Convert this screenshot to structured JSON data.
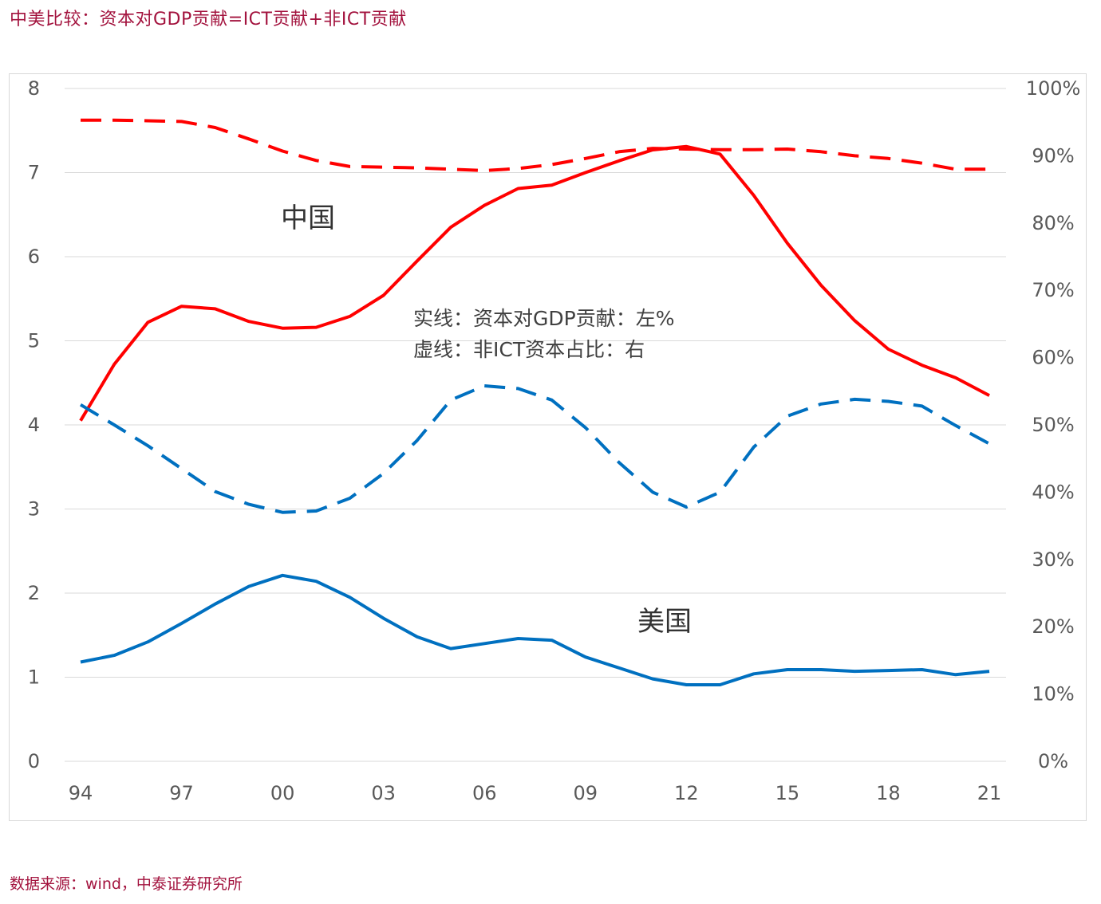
{
  "page": {
    "title": "中美比较：资本对GDP贡献=ICT贡献+非ICT贡献",
    "source": "数据来源：wind，中泰证券研究所"
  },
  "colors": {
    "china": "#ff0000",
    "usa": "#0070c0",
    "grid": "#d9d9d9",
    "tick_text": "#595959",
    "title_text": "#a3133e"
  },
  "chart_data": {
    "type": "line",
    "x": [
      "94",
      "95",
      "96",
      "97",
      "98",
      "99",
      "00",
      "01",
      "02",
      "03",
      "04",
      "05",
      "06",
      "07",
      "08",
      "09",
      "10",
      "11",
      "12",
      "13",
      "14",
      "15",
      "16",
      "17",
      "18",
      "19",
      "20",
      "21"
    ],
    "x_tick_labels": [
      "94",
      "97",
      "00",
      "03",
      "06",
      "09",
      "12",
      "15",
      "18",
      "21"
    ],
    "y_left": {
      "ticks": [
        "0",
        "1",
        "2",
        "3",
        "4",
        "5",
        "6",
        "7",
        "8"
      ],
      "ylim": [
        0,
        8
      ],
      "label": ""
    },
    "y_right": {
      "ticks": [
        "0%",
        "10%",
        "20%",
        "30%",
        "40%",
        "50%",
        "60%",
        "70%",
        "80%",
        "90%",
        "100%"
      ],
      "ylim": [
        0,
        100
      ],
      "label": ""
    },
    "series": [
      {
        "name": "中国 资本对GDP贡献",
        "axis": "left",
        "style": "solid",
        "color": "#ff0000",
        "values": [
          4.05,
          4.72,
          5.22,
          5.41,
          5.38,
          5.23,
          5.15,
          5.16,
          5.29,
          5.54,
          5.95,
          6.35,
          6.61,
          6.81,
          6.85,
          7.0,
          7.14,
          7.27,
          7.31,
          7.22,
          6.73,
          6.16,
          5.66,
          5.24,
          4.9,
          4.71,
          4.56,
          4.35
        ]
      },
      {
        "name": "中国 非ICT资本占比",
        "axis": "right",
        "style": "dashed",
        "color": "#ff0000",
        "values": [
          95.3,
          95.3,
          95.2,
          95.1,
          94.2,
          92.5,
          90.7,
          89.3,
          88.4,
          88.3,
          88.2,
          88.0,
          87.8,
          88.1,
          88.7,
          89.6,
          90.6,
          91.1,
          91.0,
          90.9,
          90.9,
          91.0,
          90.6,
          90.0,
          89.6,
          88.9,
          88.0,
          88.0
        ]
      },
      {
        "name": "美国 资本对GDP贡献",
        "axis": "left",
        "style": "solid",
        "color": "#0070c0",
        "values": [
          1.18,
          1.26,
          1.42,
          1.64,
          1.87,
          2.08,
          2.21,
          2.14,
          1.95,
          1.7,
          1.48,
          1.34,
          1.4,
          1.46,
          1.44,
          1.24,
          1.11,
          0.98,
          0.91,
          0.91,
          1.04,
          1.09,
          1.09,
          1.07,
          1.08,
          1.09,
          1.03,
          1.07
        ]
      },
      {
        "name": "美国 非ICT资本占比",
        "axis": "right",
        "style": "dashed",
        "color": "#0070c0",
        "values": [
          53.0,
          50.0,
          46.9,
          43.5,
          40.1,
          38.2,
          37.0,
          37.2,
          39.1,
          42.8,
          47.7,
          53.7,
          55.8,
          55.4,
          53.7,
          49.6,
          44.4,
          40.0,
          37.8,
          40.0,
          46.7,
          51.3,
          53.1,
          53.8,
          53.5,
          52.8,
          49.9,
          47.2
        ]
      }
    ],
    "annotations": [
      {
        "text": "中国",
        "near_series": "中国"
      },
      {
        "text": "美国",
        "near_series": "美国"
      }
    ],
    "note_lines": [
      "实线：资本对GDP贡献：左%",
      "虚线：非ICT资本占比：右"
    ],
    "grid": true,
    "legend": "none"
  }
}
